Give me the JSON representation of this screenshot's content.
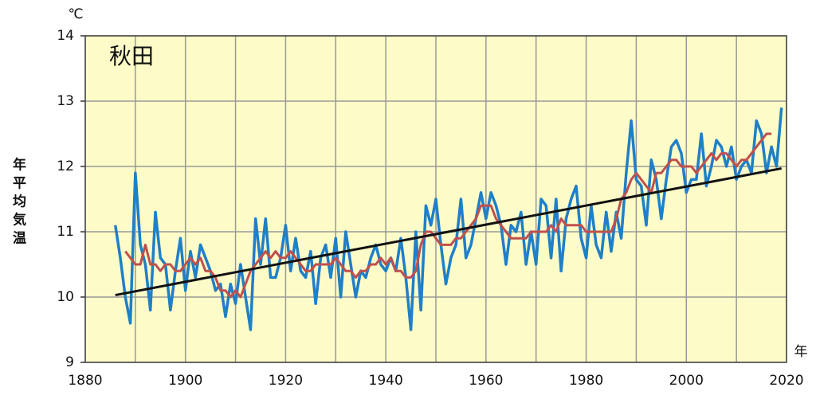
{
  "chart_data": {
    "type": "line",
    "title": "秋田",
    "y_unit": "℃",
    "ylabel": "年平均気温",
    "xlabel": "年",
    "x": [
      1886,
      1887,
      1888,
      1889,
      1890,
      1891,
      1892,
      1893,
      1894,
      1895,
      1896,
      1897,
      1898,
      1899,
      1900,
      1901,
      1902,
      1903,
      1904,
      1905,
      1906,
      1907,
      1908,
      1909,
      1910,
      1911,
      1912,
      1913,
      1914,
      1915,
      1916,
      1917,
      1918,
      1919,
      1920,
      1921,
      1922,
      1923,
      1924,
      1925,
      1926,
      1927,
      1928,
      1929,
      1930,
      1931,
      1932,
      1933,
      1934,
      1935,
      1936,
      1937,
      1938,
      1939,
      1940,
      1941,
      1942,
      1943,
      1944,
      1945,
      1946,
      1947,
      1948,
      1949,
      1950,
      1951,
      1952,
      1953,
      1954,
      1955,
      1956,
      1957,
      1958,
      1959,
      1960,
      1961,
      1962,
      1963,
      1964,
      1965,
      1966,
      1967,
      1968,
      1969,
      1970,
      1971,
      1972,
      1973,
      1974,
      1975,
      1976,
      1977,
      1978,
      1979,
      1980,
      1981,
      1982,
      1983,
      1984,
      1985,
      1986,
      1987,
      1988,
      1989,
      1990,
      1991,
      1992,
      1993,
      1994,
      1995,
      1996,
      1997,
      1998,
      1999,
      2000,
      2001,
      2002,
      2003,
      2004,
      2005,
      2006,
      2007,
      2008,
      2009,
      2010,
      2011,
      2012,
      2013,
      2014,
      2015,
      2016,
      2017,
      2018,
      2019
    ],
    "series": [
      {
        "color": "#1f7fc8",
        "values": [
          11.1,
          10.6,
          10.0,
          9.6,
          11.9,
          10.8,
          10.5,
          9.8,
          11.3,
          10.6,
          10.5,
          9.8,
          10.4,
          10.9,
          10.1,
          10.7,
          10.3,
          10.8,
          10.6,
          10.4,
          10.1,
          10.2,
          9.7,
          10.2,
          9.9,
          10.5,
          10.0,
          9.5,
          11.2,
          10.5,
          11.2,
          10.3,
          10.3,
          10.6,
          11.1,
          10.4,
          10.9,
          10.4,
          10.3,
          10.7,
          9.9,
          10.6,
          10.8,
          10.3,
          10.9,
          10.0,
          11.0,
          10.5,
          10.0,
          10.4,
          10.3,
          10.6,
          10.8,
          10.5,
          10.4,
          10.6,
          10.4,
          10.9,
          10.3,
          9.5,
          11.0,
          9.8,
          11.4,
          11.1,
          11.5,
          10.8,
          10.2,
          10.6,
          10.8,
          11.5,
          10.6,
          10.8,
          11.2,
          11.6,
          11.2,
          11.6,
          11.4,
          11.1,
          10.5,
          11.1,
          11.0,
          11.3,
          10.5,
          11.0,
          10.5,
          11.5,
          11.4,
          10.6,
          11.5,
          10.4,
          11.2,
          11.5,
          11.7,
          10.9,
          10.6,
          11.4,
          10.8,
          10.6,
          11.3,
          10.7,
          11.3,
          10.9,
          11.9,
          12.7,
          11.8,
          11.7,
          11.1,
          12.1,
          11.8,
          11.2,
          11.8,
          12.3,
          12.4,
          12.2,
          11.6,
          11.8,
          11.8,
          12.5,
          11.7,
          12.0,
          12.4,
          12.3,
          12.0,
          12.3,
          11.8,
          12.0,
          12.1,
          11.9,
          12.7,
          12.5,
          11.9,
          12.3,
          12.0,
          12.9
        ]
      },
      {
        "color": "#c0504d",
        "values": [
          null,
          null,
          10.7,
          10.6,
          10.5,
          10.5,
          10.8,
          10.5,
          10.5,
          10.4,
          10.5,
          10.5,
          10.4,
          10.4,
          10.5,
          10.6,
          10.5,
          10.6,
          10.4,
          10.4,
          10.3,
          10.1,
          10.1,
          10.0,
          10.1,
          10.0,
          10.2,
          10.4,
          10.5,
          10.6,
          10.7,
          10.6,
          10.7,
          10.6,
          10.6,
          10.7,
          10.6,
          10.5,
          10.4,
          10.4,
          10.5,
          10.5,
          10.5,
          10.5,
          10.6,
          10.5,
          10.4,
          10.4,
          10.3,
          10.4,
          10.4,
          10.5,
          10.5,
          10.6,
          10.5,
          10.6,
          10.4,
          10.4,
          10.3,
          10.3,
          10.4,
          10.8,
          11.0,
          11.0,
          10.9,
          10.8,
          10.8,
          10.8,
          10.9,
          10.9,
          11.0,
          11.1,
          11.2,
          11.4,
          11.4,
          11.4,
          11.2,
          11.1,
          11.0,
          10.9,
          10.9,
          10.9,
          10.9,
          11.0,
          11.0,
          11.0,
          11.0,
          11.1,
          11.0,
          11.2,
          11.1,
          11.1,
          11.1,
          11.1,
          11.0,
          11.0,
          11.0,
          11.0,
          11.0,
          11.0,
          11.2,
          11.5,
          11.6,
          11.8,
          11.9,
          11.8,
          11.7,
          11.6,
          11.9,
          11.9,
          12.0,
          12.1,
          12.1,
          12.0,
          12.0,
          12.0,
          11.9,
          12.0,
          12.1,
          12.2,
          12.1,
          12.2,
          12.2,
          12.1,
          12.0,
          12.1,
          12.1,
          12.2,
          12.3,
          12.4,
          12.5,
          12.5,
          null,
          null
        ]
      }
    ],
    "trend": {
      "color": "#111111",
      "x": [
        1886,
        2019
      ],
      "values": [
        10.03,
        11.97
      ]
    },
    "xlim": [
      1880,
      2020
    ],
    "xticks": [
      1880,
      1900,
      1920,
      1940,
      1960,
      1980,
      2000,
      2020
    ],
    "xgrid": [
      1890,
      1910,
      1930,
      1950,
      1970,
      1990,
      2010
    ],
    "ylim": [
      9,
      14
    ],
    "yticks": [
      9,
      10,
      11,
      12,
      13,
      14
    ],
    "grid": true
  }
}
